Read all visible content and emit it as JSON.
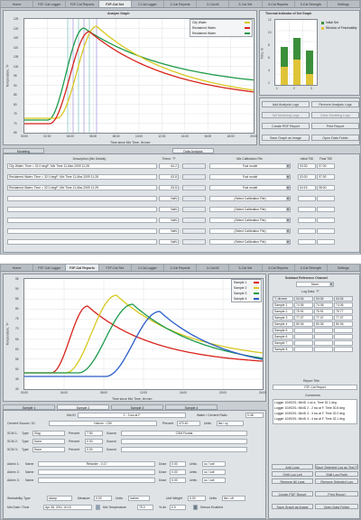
{
  "colors": {
    "city": "#d8c81e",
    "reclaimed1": "#d8241c",
    "reclaimed2": "#1e9a4a",
    "sample4": "#2a5cc8"
  },
  "top": {
    "tabs": [
      "Home",
      "F2F-Cal Logger",
      "F2F-Cal Reports",
      "F2F-Cal Set",
      "2-Cal Logger",
      "2-Cal Reports",
      "2-Cal All",
      "3-Cal Set",
      "3-Cal Reports",
      "3-Cal Strength",
      "Settings"
    ],
    "active_tab": 3,
    "graph_title": "Analyze Graph",
    "y_axis_label": "Temperature, °F",
    "x_axis_label": "Time since Mix Time, hh:mm",
    "y_ticks": [
      "125",
      "120",
      "115",
      "110",
      "105",
      "100",
      "95",
      "90",
      "85",
      "80",
      "75",
      "70",
      "65"
    ],
    "x_ticks": [
      "00:00",
      "02:00",
      "04:00",
      "06:00",
      "08:00",
      "10:00",
      "12:00",
      "14:00",
      "16:00",
      "18:00",
      "20:00"
    ],
    "legend": [
      "City Water",
      "Reclaimed Water",
      "Reclaimed Water"
    ],
    "thermal": {
      "title": "Thermal Indicator of Set Graph",
      "legend": [
        "Initial Set",
        "Window of Finishability"
      ],
      "y_label": "Time, hr",
      "y_ticks": [
        "12",
        "10",
        "8",
        "6",
        "4",
        "2"
      ],
      "x_ticks": [
        "1",
        "2",
        "3"
      ]
    },
    "buttons": [
      "Add Analysis Logs",
      "Remove Analysis Logs",
      "Set Modeling Logs",
      "Clear Modeling Logs",
      "Create PDF Report",
      "Print Report",
      "Save Graph as Image",
      "Open Data Folder"
    ],
    "tabs2": [
      "Modeling",
      "Data Analysis"
    ],
    "table_headers": [
      "Description (Mix Details)",
      "Therm. °F",
      "Mix Calibration File",
      "Initial T50",
      "Final T50"
    ],
    "rows": [
      {
        "desc": "City Water; Time = 32.0 degF; Mix Time 11-Mar-2009 11:28",
        "therm": "64.2",
        "file": "Fcal model",
        "init": "03:30",
        "final": "07:00"
      },
      {
        "desc": "Reclaimed Water; Time = 32.0 degF; Mix Time 11-Mar-2009 11:28",
        "therm": "63.8",
        "file": "Fcal model",
        "init": "03:00",
        "final": "07:00"
      },
      {
        "desc": "Reclaimed Water; Time = 32.0 degF; Mix Time 11-Mar-2009 11:29",
        "therm": "63.8",
        "file": "Fcal model",
        "init": "04:15",
        "final": "08:00"
      },
      {
        "desc": "",
        "therm": "NaN",
        "file": "(Select Calibration File)",
        "init": "",
        "final": ""
      },
      {
        "desc": "",
        "therm": "NaN",
        "file": "(Select Calibration File)",
        "init": "",
        "final": ""
      },
      {
        "desc": "",
        "therm": "NaN",
        "file": "(Select Calibration File)",
        "init": "",
        "final": ""
      },
      {
        "desc": "",
        "therm": "NaN",
        "file": "(Select Calibration File)",
        "init": "",
        "final": ""
      },
      {
        "desc": "",
        "therm": "NaN",
        "file": "(Select Calibration File)",
        "init": "",
        "final": ""
      }
    ]
  },
  "bottom": {
    "tabs": [
      "Home",
      "F2F-Cal Logger",
      "F2F-Cal Reports",
      "F2F-Cal Set",
      "2-Cal Logger",
      "2-Cal Reports",
      "2-Cal All",
      "3-Cal Set",
      "3-Cal Reports",
      "2-Cal Strength",
      "Settings"
    ],
    "active_tab": 2,
    "y_axis_label": "Temperature, °F",
    "x_axis_label": "Time since Mix Time, hh:mm",
    "y_ticks": [
      "95",
      "90",
      "85",
      "80",
      "75",
      "70",
      "65",
      "60",
      "55",
      "50",
      "45",
      "40"
    ],
    "x_ticks": [
      "00:00",
      "04:00",
      "08:00",
      "12:00",
      "16:00",
      "20:00",
      "24:00"
    ],
    "legend": [
      "Sample 1",
      "Sample 2",
      "Sample 3",
      "Sample 4"
    ],
    "subtract": {
      "title": "Subtract Reference Channel",
      "value": "None"
    },
    "log_data": {
      "title": "Log Data, °F",
      "headers": [
        "T, hh:mm",
        "04:34",
        "04:34",
        "04:34"
      ],
      "rows": [
        [
          "Sample 1",
          "74.06",
          "74.06",
          "74.06"
        ],
        [
          "Sample 2",
          "75.91",
          "75.91",
          "75.77"
        ],
        [
          "Sample 3",
          "77.07",
          "77.07",
          "77.07"
        ],
        [
          "Sample 4",
          "80.06",
          "80.06",
          "80.06"
        ],
        [
          "Sample 5",
          "",
          "",
          ""
        ],
        [
          "Sample 6",
          "",
          "",
          ""
        ],
        [
          "Sample 7",
          "",
          "",
          ""
        ],
        [
          "Sample 8",
          "",
          "",
          ""
        ]
      ]
    },
    "report": {
      "title": "Report Title",
      "value": "F2F-Cal Report"
    },
    "comments": {
      "title": "Comments",
      "items": [
        "Logger 1049201: MixID 1 se a, Time 32.1 deg",
        "Logger 1049201: MixID 2 - 2 sw at F, Time 30.8 deg",
        "Logger 1049201: MixID 3 - 3 sw at F, Time 32.0 deg",
        "Logger 1049201: MixID 4 - 4 sw at F, Time 32.1 deg"
      ]
    },
    "sample_tabs": [
      "Sample 1",
      "Sample 2",
      "Sample 3",
      "Sample 4"
    ],
    "active_sample_tab": 1,
    "mix_id": {
      "label": "Mix ID",
      "value": "2 - 3 sw at F"
    },
    "water_cement": {
      "label": "Water / Cement Ratio",
      "value": "0.48"
    },
    "cement": {
      "label": "Cement Source / ID",
      "value": "Holcim - C50",
      "percent_label": "Percent",
      "percent": "470.40",
      "units_label": "Units",
      "units": "lbs / cy"
    },
    "scm": [
      {
        "label": "SCM 1:",
        "type_label": "Type",
        "type": "Slag",
        "percent": "7.50",
        "source_label": "Source",
        "source": "CSM Florida"
      },
      {
        "label": "SCM 2:",
        "type_label": "Type",
        "type": "None",
        "percent": "0.00",
        "source_label": "Source",
        "source": ""
      },
      {
        "label": "SCM 3:",
        "type_label": "Type",
        "type": "None",
        "percent": "0.00",
        "source_label": "Source",
        "source": ""
      }
    ],
    "admix": [
      {
        "label": "Admix 1:",
        "name_label": "Name",
        "name": "Retarder - 0.17",
        "dose_label": "Dose",
        "dose": "0.00",
        "units_label": "Units",
        "units": "oz / cwt"
      },
      {
        "label": "Admix 2:",
        "name_label": "Name",
        "name": "",
        "dose_label": "Dose",
        "dose": "0.00",
        "units_label": "Units",
        "units": "oz / cwt"
      },
      {
        "label": "Admix 3:",
        "name_label": "Name",
        "name": "",
        "dose_label": "Dose",
        "dose": "0.00",
        "units_label": "Units",
        "units": "oz / cwt"
      }
    ],
    "workability": {
      "label": "Workability Type",
      "type": "slump",
      "measure_label": "Measure",
      "measure": "0.00",
      "units_label": "Units",
      "units": "inches",
      "unit_weight_label": "Unit Weight",
      "unit_weight": "0.00",
      "uw_units": "lbs / cft"
    },
    "mix_date": {
      "label": "Mix Date / Time",
      "value": "Apr 28, 2011 10:15",
      "mix_temp_label": "Mix Temperature",
      "mix_temp": "75.0",
      "air_label": "% Air",
      "air": "0.0",
      "sensor_label": "Sensor Enabled"
    },
    "buttons": [
      "Add Logs",
      "Save Selected Log as Text File",
      "Shift Log Left",
      "Shift Log Right",
      "Remove All Logs",
      "Remove Selected Log",
      "Create PDF Report",
      "Print Report",
      "Save Graph as Image",
      "Open Data Folder"
    ]
  }
}
